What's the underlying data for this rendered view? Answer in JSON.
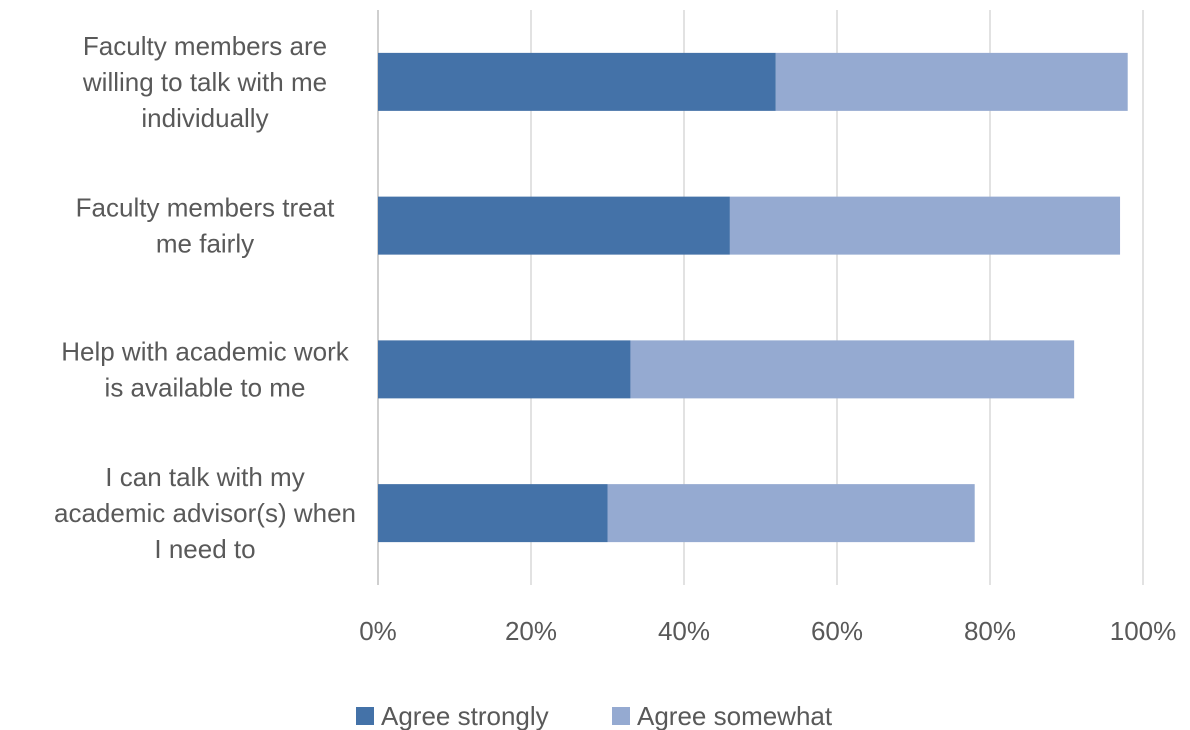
{
  "chart_data": {
    "type": "bar",
    "orientation": "horizontal",
    "stacked": true,
    "categories": [
      "Faculty members are willing to talk with me individually",
      "Faculty members treat me fairly",
      "Help with academic work is available to me",
      "I can talk with my academic advisor(s) when I need to"
    ],
    "category_lines": [
      [
        "Faculty members are",
        "willing to talk with me",
        "individually"
      ],
      [
        "Faculty members treat",
        "me fairly"
      ],
      [
        "Help with academic work",
        "is available to me"
      ],
      [
        "I can talk with my",
        "academic advisor(s) when",
        "I need to"
      ]
    ],
    "series": [
      {
        "name": "Agree strongly",
        "values": [
          52,
          46,
          33,
          30
        ],
        "color": "#4472a8"
      },
      {
        "name": "Agree somewhat",
        "values": [
          46,
          51,
          58,
          48
        ],
        "color": "#95aad1"
      }
    ],
    "xlim": [
      0,
      100
    ],
    "xticks": [
      0,
      20,
      40,
      60,
      80,
      100
    ],
    "xtick_labels": [
      "0%",
      "20%",
      "40%",
      "60%",
      "80%",
      "100%"
    ],
    "grid": true,
    "legend_position": "bottom",
    "title": "",
    "xlabel": "",
    "ylabel": ""
  }
}
